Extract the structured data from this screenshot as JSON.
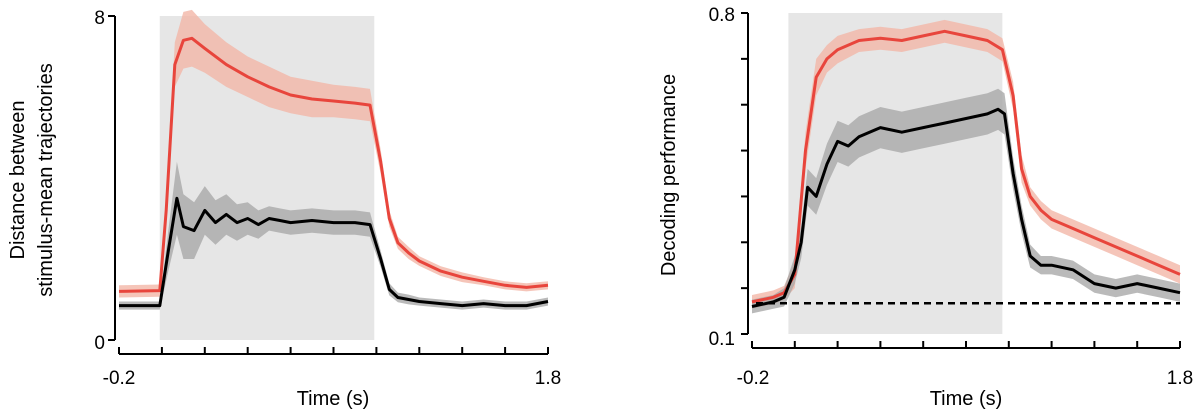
{
  "chart_data": [
    {
      "type": "line",
      "xlabel": "Time (s)",
      "ylabel": [
        "Distance between",
        "stimulus-mean trajectories"
      ],
      "xlim": [
        -0.2,
        1.8
      ],
      "ylim": [
        0,
        8
      ],
      "x_tick_labels": [
        "-0.2",
        "1.8"
      ],
      "y_tick_labels": [
        "0",
        "8"
      ],
      "x_ticks": [
        -0.2,
        0,
        0.2,
        0.4,
        0.6,
        0.8,
        1.0,
        1.2,
        1.4,
        1.6,
        1.8
      ],
      "y_ticks": [
        0,
        8
      ],
      "shaded_interval": [
        -0.01,
        0.99
      ],
      "shade_color": "#e6e6e6",
      "series": [
        {
          "name": "red",
          "color": "#e8453c",
          "band_color": "#f3b7a8",
          "x": [
            -0.2,
            -0.01,
            0.02,
            0.06,
            0.1,
            0.14,
            0.2,
            0.3,
            0.4,
            0.5,
            0.6,
            0.7,
            0.8,
            0.9,
            0.97,
            1.02,
            1.06,
            1.1,
            1.15,
            1.2,
            1.3,
            1.4,
            1.5,
            1.6,
            1.7,
            1.8
          ],
          "y": [
            1.2,
            1.22,
            3.2,
            6.8,
            7.4,
            7.45,
            7.2,
            6.8,
            6.5,
            6.25,
            6.05,
            5.95,
            5.9,
            5.85,
            5.8,
            4.4,
            3.0,
            2.4,
            2.15,
            1.95,
            1.7,
            1.55,
            1.45,
            1.35,
            1.3,
            1.35
          ],
          "err": [
            0.15,
            0.15,
            0.3,
            0.55,
            0.7,
            0.7,
            0.6,
            0.55,
            0.5,
            0.5,
            0.45,
            0.45,
            0.4,
            0.4,
            0.4,
            0.3,
            0.2,
            0.15,
            0.15,
            0.12,
            0.12,
            0.12,
            0.1,
            0.1,
            0.1,
            0.1
          ]
        },
        {
          "name": "black",
          "color": "#000000",
          "band_color": "#a9a9a9",
          "x": [
            -0.2,
            -0.01,
            0.03,
            0.07,
            0.1,
            0.15,
            0.2,
            0.25,
            0.3,
            0.35,
            0.4,
            0.45,
            0.5,
            0.55,
            0.6,
            0.7,
            0.8,
            0.9,
            0.97,
            1.02,
            1.06,
            1.1,
            1.15,
            1.2,
            1.3,
            1.4,
            1.5,
            1.6,
            1.7,
            1.8
          ],
          "y": [
            0.85,
            0.85,
            2.2,
            3.5,
            2.8,
            2.7,
            3.2,
            2.9,
            3.1,
            2.9,
            3.0,
            2.85,
            3.0,
            2.95,
            2.9,
            2.95,
            2.9,
            2.9,
            2.85,
            2.0,
            1.25,
            1.05,
            1.0,
            0.95,
            0.9,
            0.85,
            0.9,
            0.85,
            0.85,
            0.95
          ],
          "err": [
            0.1,
            0.1,
            0.5,
            0.9,
            0.8,
            0.7,
            0.6,
            0.55,
            0.5,
            0.45,
            0.4,
            0.35,
            0.3,
            0.3,
            0.3,
            0.3,
            0.3,
            0.3,
            0.3,
            0.2,
            0.15,
            0.12,
            0.12,
            0.1,
            0.1,
            0.1,
            0.1,
            0.1,
            0.1,
            0.1
          ]
        }
      ]
    },
    {
      "type": "line",
      "xlabel": "Time (s)",
      "ylabel": [
        "Decoding performance"
      ],
      "xlim": [
        -0.2,
        1.8
      ],
      "ylim": [
        0.1,
        0.8
      ],
      "x_tick_labels": [
        "-0.2",
        "1.8"
      ],
      "y_tick_labels": [
        "0.1",
        "0.8"
      ],
      "x_ticks": [
        -0.2,
        0,
        0.2,
        0.4,
        0.6,
        0.8,
        1.0,
        1.2,
        1.4,
        1.6,
        1.8
      ],
      "y_ticks": [
        0.1,
        0.2,
        0.3,
        0.4,
        0.5,
        0.6,
        0.7,
        0.8
      ],
      "shaded_interval": [
        -0.03,
        0.97
      ],
      "shade_color": "#e6e6e6",
      "chance_level": 0.167,
      "series": [
        {
          "name": "red",
          "color": "#e8453c",
          "band_color": "#f3b7a8",
          "x": [
            -0.2,
            -0.1,
            -0.05,
            0.0,
            0.05,
            0.1,
            0.15,
            0.2,
            0.3,
            0.4,
            0.5,
            0.6,
            0.7,
            0.8,
            0.9,
            0.97,
            1.02,
            1.06,
            1.1,
            1.15,
            1.2,
            1.3,
            1.4,
            1.5,
            1.6,
            1.7,
            1.8
          ],
          "y": [
            0.17,
            0.18,
            0.19,
            0.23,
            0.5,
            0.66,
            0.7,
            0.72,
            0.74,
            0.745,
            0.74,
            0.75,
            0.76,
            0.75,
            0.74,
            0.72,
            0.62,
            0.46,
            0.4,
            0.37,
            0.35,
            0.33,
            0.31,
            0.29,
            0.27,
            0.25,
            0.23
          ],
          "err": [
            0.015,
            0.015,
            0.015,
            0.03,
            0.04,
            0.04,
            0.03,
            0.03,
            0.025,
            0.025,
            0.025,
            0.025,
            0.025,
            0.025,
            0.025,
            0.025,
            0.03,
            0.03,
            0.02,
            0.02,
            0.02,
            0.02,
            0.02,
            0.02,
            0.02,
            0.02,
            0.02
          ]
        },
        {
          "name": "black",
          "color": "#000000",
          "band_color": "#a9a9a9",
          "x": [
            -0.2,
            -0.1,
            -0.05,
            0.0,
            0.03,
            0.06,
            0.1,
            0.15,
            0.2,
            0.25,
            0.3,
            0.4,
            0.5,
            0.6,
            0.7,
            0.8,
            0.9,
            0.95,
            0.98,
            1.02,
            1.06,
            1.1,
            1.15,
            1.2,
            1.3,
            1.4,
            1.5,
            1.6,
            1.7,
            1.8
          ],
          "y": [
            0.16,
            0.17,
            0.18,
            0.24,
            0.3,
            0.42,
            0.4,
            0.47,
            0.52,
            0.51,
            0.53,
            0.55,
            0.54,
            0.55,
            0.56,
            0.57,
            0.58,
            0.59,
            0.58,
            0.45,
            0.35,
            0.27,
            0.25,
            0.25,
            0.24,
            0.21,
            0.2,
            0.21,
            0.2,
            0.19
          ],
          "err": [
            0.015,
            0.015,
            0.02,
            0.03,
            0.035,
            0.04,
            0.04,
            0.045,
            0.045,
            0.045,
            0.045,
            0.045,
            0.045,
            0.045,
            0.045,
            0.045,
            0.045,
            0.045,
            0.045,
            0.035,
            0.03,
            0.025,
            0.02,
            0.02,
            0.02,
            0.02,
            0.02,
            0.02,
            0.02,
            0.02
          ]
        }
      ]
    }
  ]
}
